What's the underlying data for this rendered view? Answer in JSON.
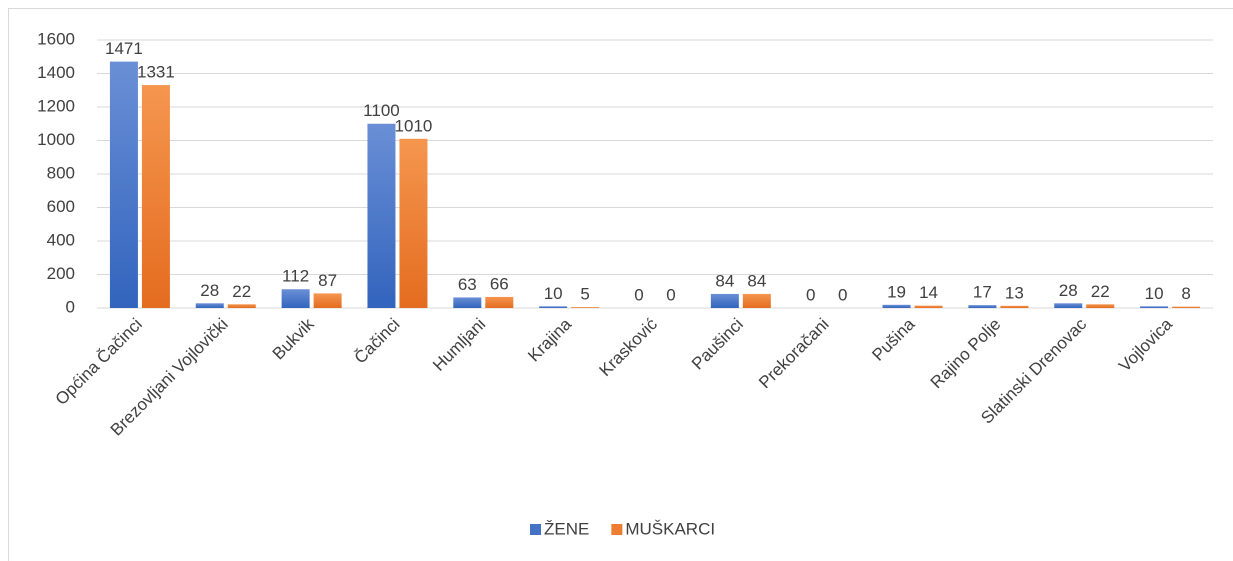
{
  "chart_data": {
    "type": "bar",
    "categories": [
      "Općina Čačinci",
      "Brezovljani Vojlovički",
      "Bukvik",
      "Čačinci",
      "Humljani",
      "Krajina",
      "Krasković",
      "Paušinci",
      "Prekoračani",
      "Pušina",
      "Rajino Polje",
      "Slatinski Drenovac",
      "Vojlovica"
    ],
    "series": [
      {
        "name": "ŽENE",
        "color": "#4472c4",
        "values": [
          1471,
          28,
          112,
          1100,
          63,
          10,
          0,
          84,
          0,
          19,
          17,
          28,
          10
        ]
      },
      {
        "name": "MUŠKARCI",
        "color": "#ed7d31",
        "values": [
          1331,
          22,
          87,
          1010,
          66,
          5,
          0,
          84,
          0,
          14,
          13,
          22,
          8
        ]
      }
    ],
    "ylim": [
      0,
      1600
    ],
    "yticks": [
      0,
      200,
      400,
      600,
      800,
      1000,
      1200,
      1400,
      1600
    ],
    "grid": true,
    "legend": "bottom"
  }
}
